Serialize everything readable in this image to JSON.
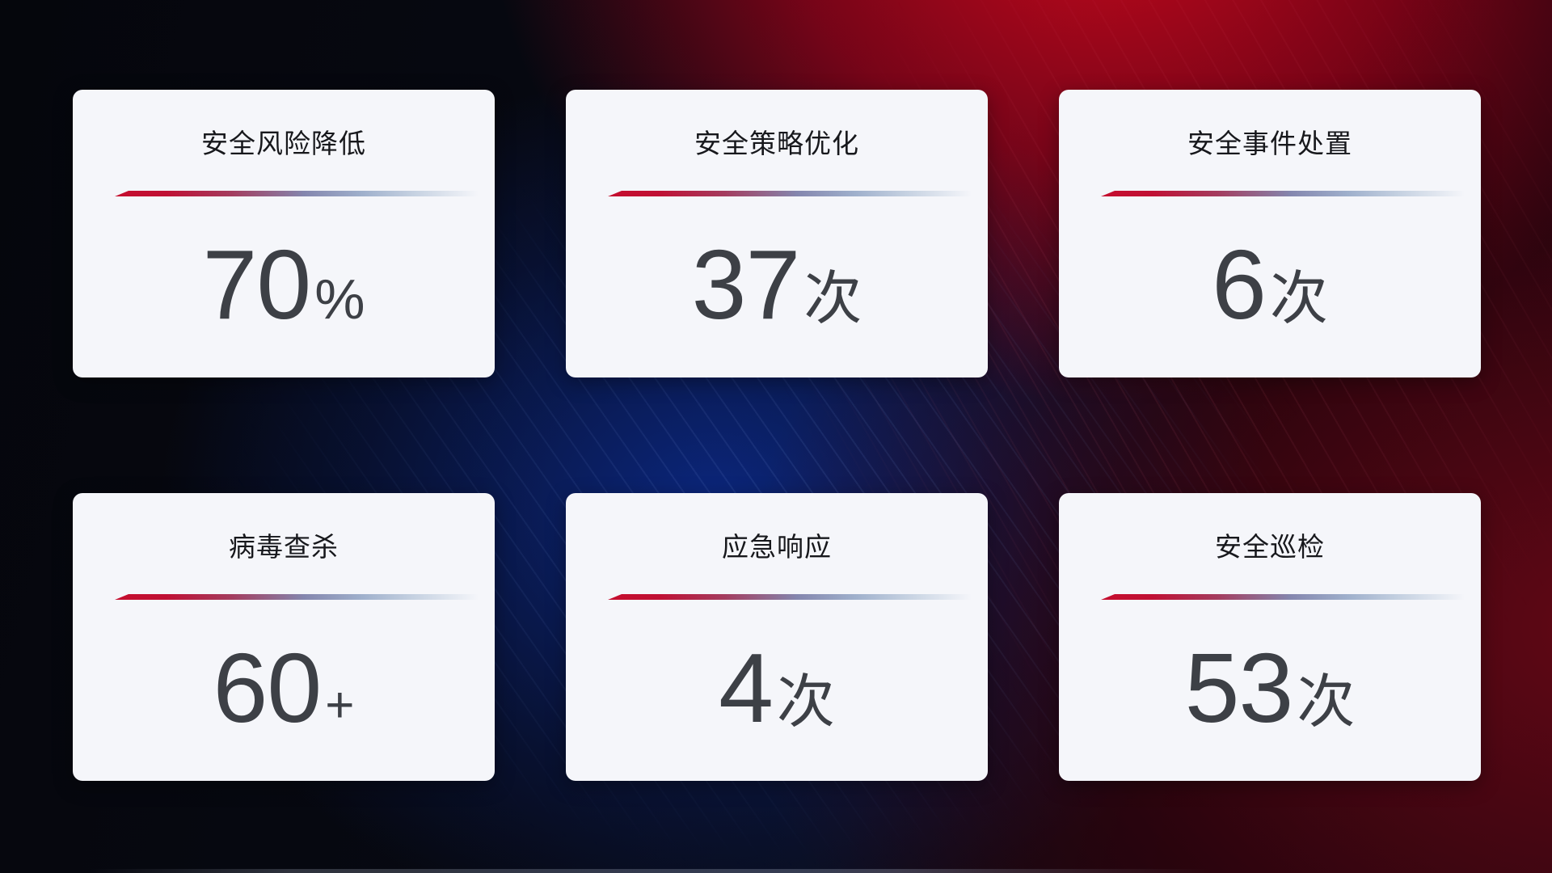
{
  "theme": {
    "card_bg": "#f5f6fa",
    "title_color": "#17181c",
    "value_color": "#3d4046",
    "divider_red": "#c50e2e",
    "divider_blue": "#8486ae",
    "divider_light": "#c5d1e1",
    "bg_navy": "#070912",
    "bg_blue_glow": "#0c2d96",
    "bg_red_bright": "#cd081c",
    "bg_red_dark": "#6e0816"
  },
  "cards": [
    {
      "title": "安全风险降低",
      "value": "70",
      "unit": "%"
    },
    {
      "title": "安全策略优化",
      "value": "37",
      "unit": "次"
    },
    {
      "title": "安全事件处置",
      "value": "6",
      "unit": "次"
    },
    {
      "title": "病毒查杀",
      "value": "60",
      "unit": "+"
    },
    {
      "title": "应急响应",
      "value": "4",
      "unit": "次"
    },
    {
      "title": "安全巡检",
      "value": "53",
      "unit": "次"
    }
  ]
}
